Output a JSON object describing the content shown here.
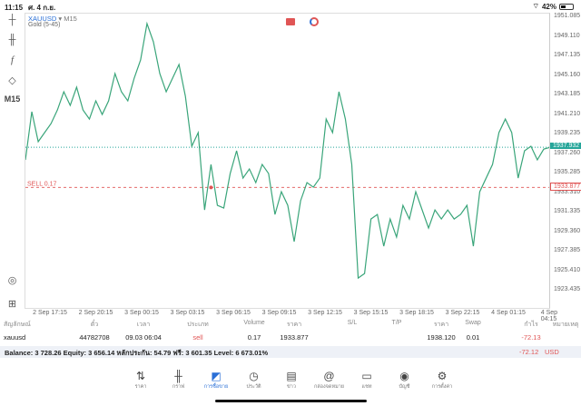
{
  "status": {
    "time": "11:15",
    "date": "ศ. 4 ก.ย.",
    "battery": "42%",
    "battery_level": 0.42
  },
  "chart": {
    "symbol": "XAUUSD",
    "timeframe": "M15",
    "indicator": "Gold (5-45)",
    "timeframe_label": "M15"
  },
  "chart_data": {
    "type": "line",
    "line_color": "#3aa57a",
    "y_ticks": [
      "1951.085",
      "1949.110",
      "1947.135",
      "1945.160",
      "1943.185",
      "1941.210",
      "1939.235",
      "1937.260",
      "1935.285",
      "1933.310",
      "1931.335",
      "1929.360",
      "1927.385",
      "1925.410",
      "1923.435"
    ],
    "ylim": [
      1923.435,
      1951.085
    ],
    "x_ticks": [
      "2 Sep 17:15",
      "2 Sep 20:15",
      "3 Sep 00:15",
      "3 Sep 03:15",
      "3 Sep 06:15",
      "3 Sep 09:15",
      "3 Sep 12:15",
      "3 Sep 15:15",
      "3 Sep 18:15",
      "3 Sep 22:15",
      "4 Sep 01:15",
      "4 Sep 04:15"
    ],
    "values": [
      1936.66,
      1941.53,
      1938.5,
      1939.42,
      1940.33,
      1941.71,
      1943.55,
      1942.17,
      1944.01,
      1941.71,
      1940.79,
      1942.63,
      1941.25,
      1942.63,
      1945.39,
      1943.55,
      1942.63,
      1944.93,
      1946.77,
      1950.44,
      1948.6,
      1945.39,
      1943.55,
      1944.93,
      1946.31,
      1943.09,
      1938.04,
      1939.42,
      1931.6,
      1936.2,
      1932.06,
      1931.79,
      1935.28,
      1937.58,
      1934.82,
      1935.74,
      1934.36,
      1936.2,
      1935.28,
      1931.14,
      1933.44,
      1932.06,
      1928.39,
      1932.52,
      1934.36,
      1933.9,
      1934.82,
      1940.79,
      1939.42,
      1943.55,
      1940.79,
      1936.2,
      1924.71,
      1925.17,
      1930.68,
      1931.14,
      1927.93,
      1930.68,
      1928.85,
      1932.06,
      1930.68,
      1933.44,
      1931.6,
      1929.77,
      1931.6,
      1930.68,
      1931.6,
      1930.68,
      1931.14,
      1932.06,
      1927.93,
      1933.44,
      1934.82,
      1936.2,
      1939.42,
      1940.79,
      1939.42,
      1934.82,
      1937.58,
      1938.04,
      1936.66,
      1937.75,
      1937.93
    ],
    "current_price": 1937.932,
    "current_price_label": "1937.932",
    "current_color": "#26a69a",
    "order_price": 1933.877,
    "order_price_label": "1933.877",
    "order_label": "SELL 0.17",
    "order_color": "#e05555",
    "order_entry_index": 29
  },
  "table": {
    "headers": [
      "สัญลักษณ์",
      "ตั๋ว",
      "เวลา",
      "ประเภท",
      "Volume",
      "ราคา",
      "S/L",
      "T/P",
      "ราคา",
      "Swap",
      "กำไร",
      "หมายเหตุ"
    ],
    "row": {
      "symbol": "xauusd",
      "ticket": "44782708",
      "time": "09.03 06:04",
      "type": "sell",
      "volume": "0.17",
      "open_price": "1933.877",
      "sl": "",
      "tp": "",
      "price": "1938.120",
      "swap": "0.01",
      "profit": "-72.13"
    }
  },
  "balance": {
    "text": "Balance: 3 728.26 Equity: 3 656.14 หลักประกัน: 54.79 ฟรี: 3 601.35 Level: 6 673.01%",
    "total": "-72.12",
    "currency": "USD"
  },
  "nav": [
    {
      "label": "ราคา",
      "icon": "arrows-updown-icon"
    },
    {
      "label": "กราฟ",
      "icon": "candles-icon"
    },
    {
      "label": "การซื้อขาย",
      "icon": "trade-chart-icon",
      "active": true
    },
    {
      "label": "ประวัติ",
      "icon": "history-icon"
    },
    {
      "label": "ข่าว",
      "icon": "news-icon"
    },
    {
      "label": "กล่องจดหมาย",
      "icon": "mail-at-icon"
    },
    {
      "label": "แชท",
      "icon": "chat-icon"
    },
    {
      "label": "บัญชี",
      "icon": "account-icon"
    },
    {
      "label": "การตั้งค่า",
      "icon": "settings-icon"
    }
  ]
}
